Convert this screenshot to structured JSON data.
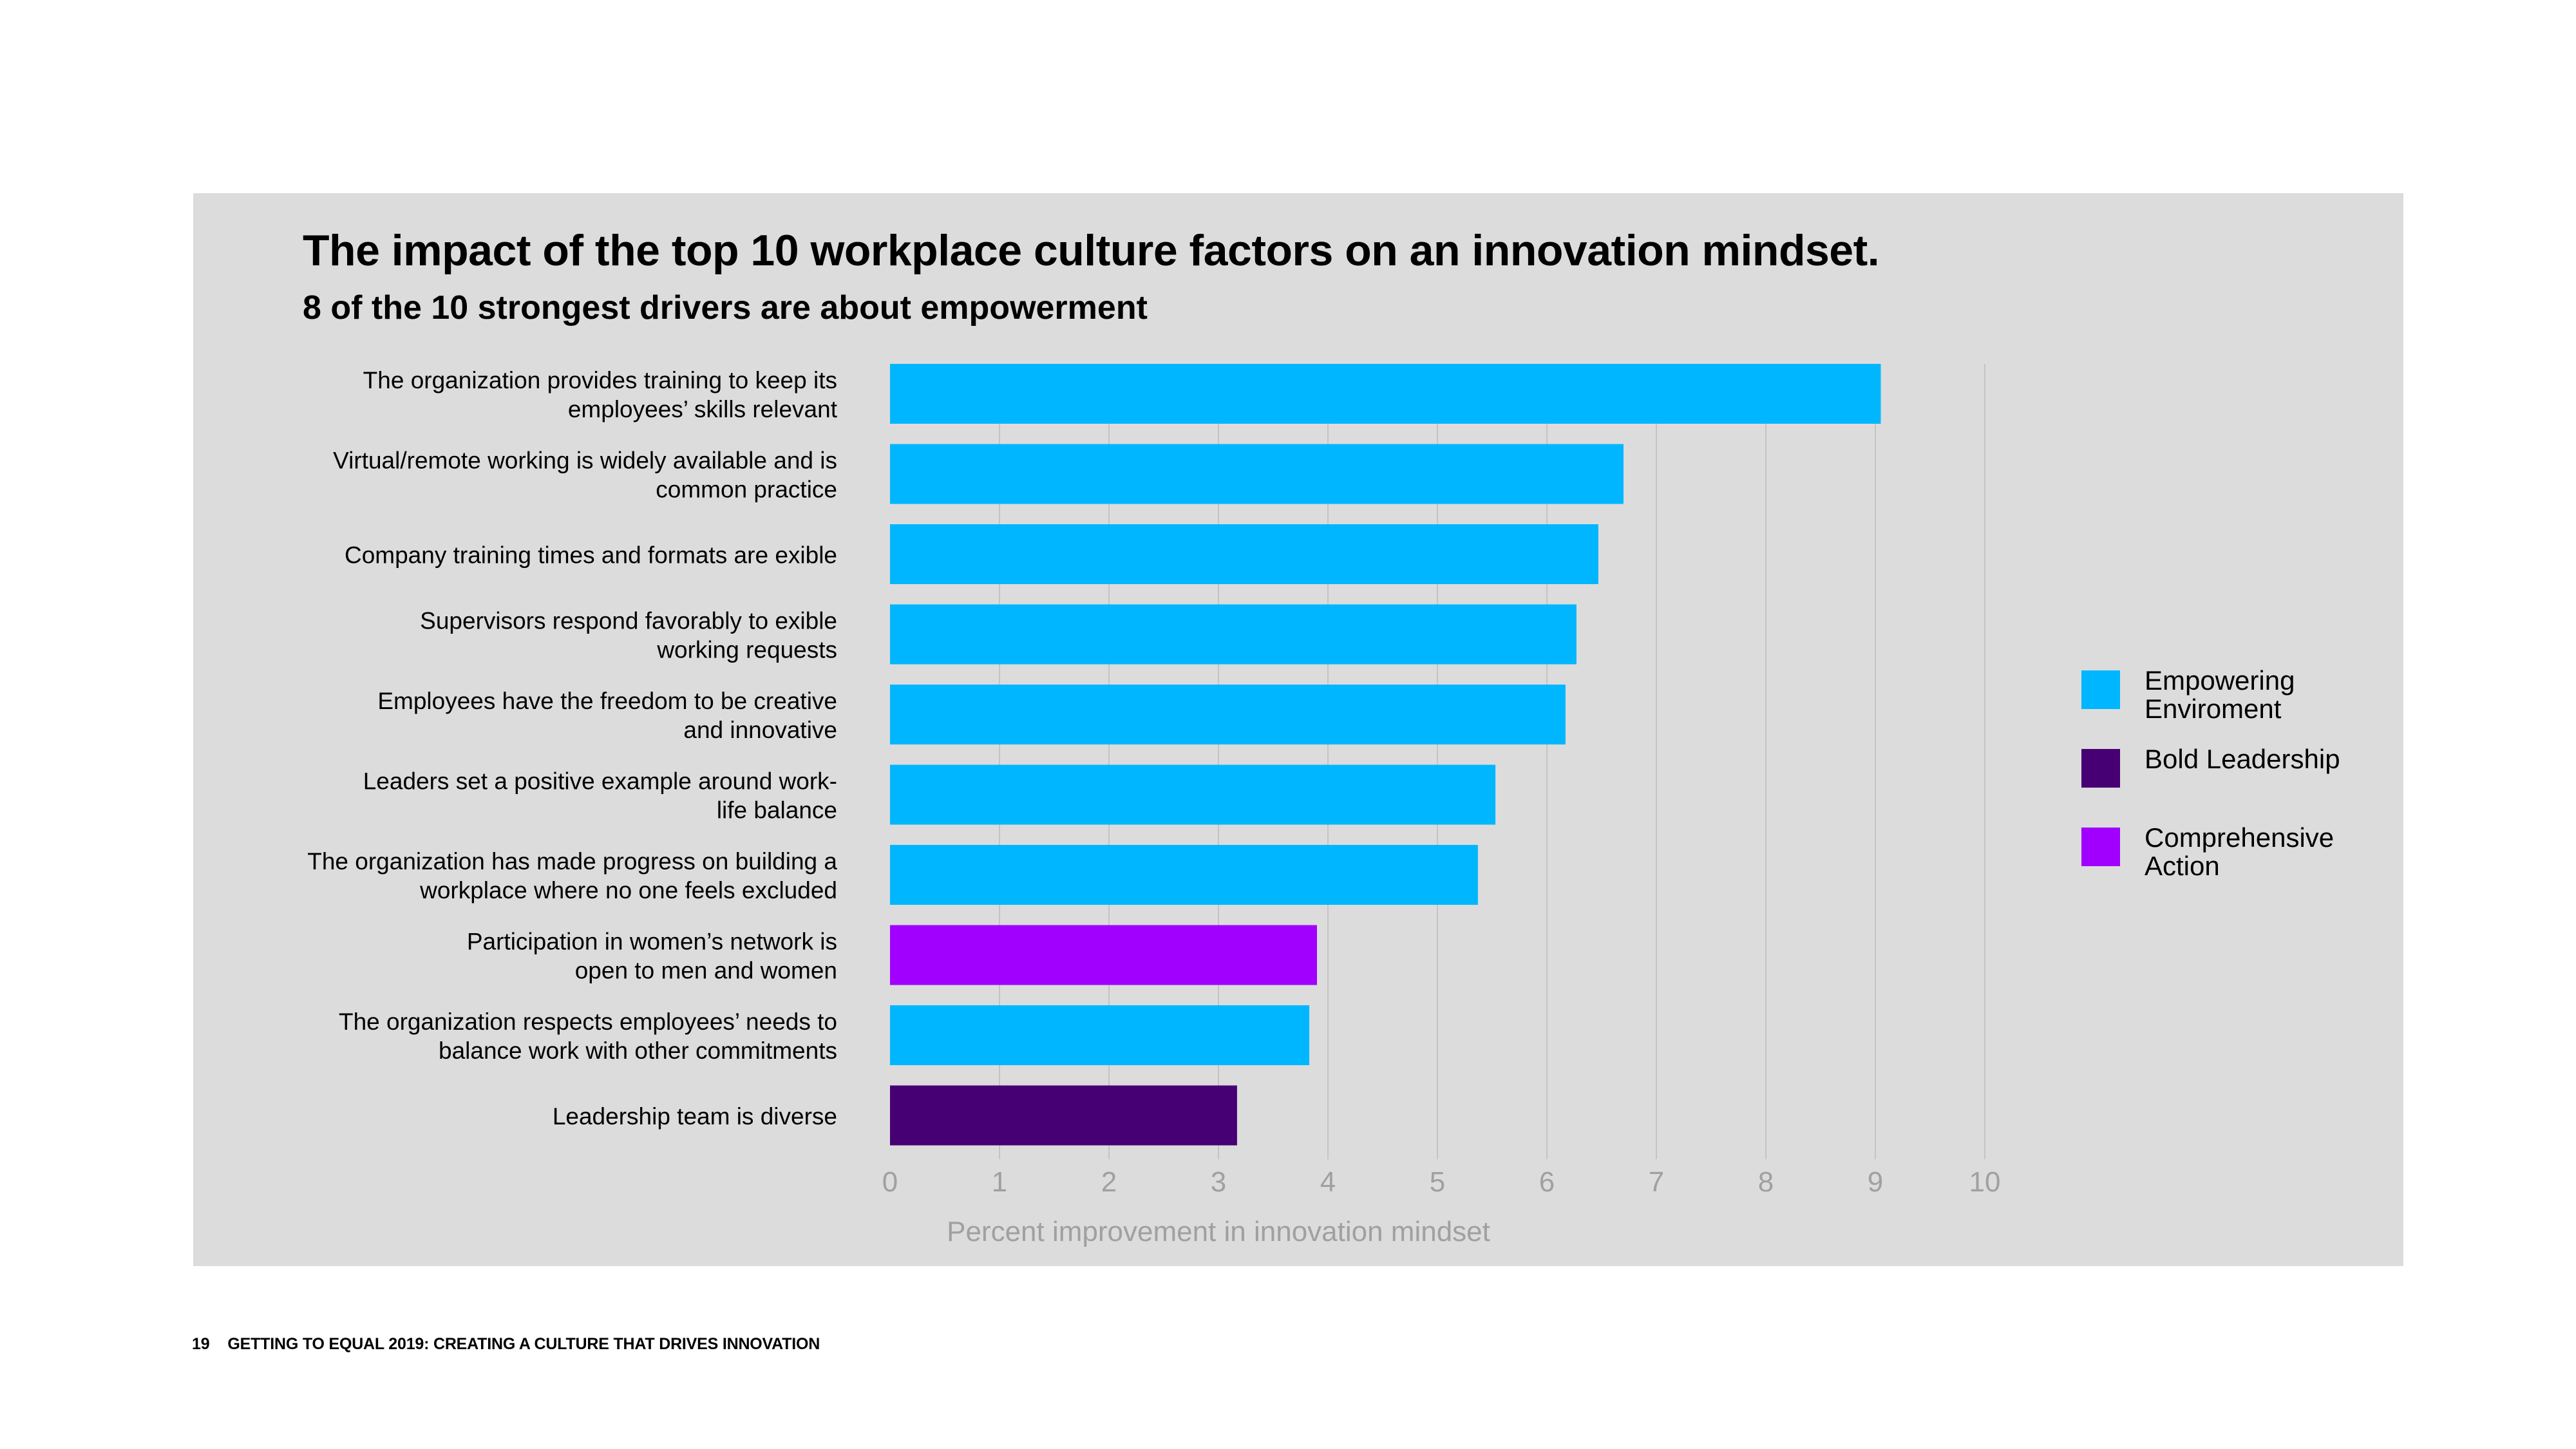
{
  "chart_data": {
    "type": "bar",
    "orientation": "horizontal",
    "title": "The impact of the top 10 workplace culture factors on an innovation mindset.",
    "subtitle": "8 of the 10 strongest drivers are about empowerment",
    "xlabel": "Percent improvement in innovation mindset",
    "xlim": [
      0,
      10
    ],
    "xticks": [
      "0",
      "1",
      "2",
      "3",
      "4",
      "5",
      "6",
      "7",
      "8",
      "9",
      "10"
    ],
    "grid": true,
    "legend_position": "right",
    "colors": {
      "empowering": "#00b7ff",
      "bold": "#460073",
      "comprehensive": "#a100ff"
    },
    "legend": [
      {
        "key": "empowering",
        "label": "Empowering Enviroment"
      },
      {
        "key": "bold",
        "label": "Bold Leadership"
      },
      {
        "key": "comprehensive",
        "label": "Comprehensive Action"
      }
    ],
    "bars": [
      {
        "label_lines": [
          "The organization provides training to keep its",
          "employees’ skills relevant"
        ],
        "value": 9.05,
        "category": "empowering"
      },
      {
        "label_lines": [
          "Virtual/remote working is widely available and is",
          "common practice"
        ],
        "value": 6.7,
        "category": "empowering"
      },
      {
        "label_lines": [
          "Company training times and formats are   exible"
        ],
        "value": 6.47,
        "category": "empowering"
      },
      {
        "label_lines": [
          "Supervisors respond favorably to   exible",
          "working requests"
        ],
        "value": 6.27,
        "category": "empowering"
      },
      {
        "label_lines": [
          "Employees have the freedom to be creative",
          "and innovative"
        ],
        "value": 6.17,
        "category": "empowering"
      },
      {
        "label_lines": [
          "Leaders set a positive example around work-",
          "life balance"
        ],
        "value": 5.53,
        "category": "empowering"
      },
      {
        "label_lines": [
          "The organization has made progress on building a",
          "workplace where no one feels excluded"
        ],
        "value": 5.37,
        "category": "empowering"
      },
      {
        "label_lines": [
          "Participation in women’s network is",
          "open to men and women"
        ],
        "value": 3.9,
        "category": "comprehensive"
      },
      {
        "label_lines": [
          "The organization respects employees’ needs to",
          "balance work with other commitments"
        ],
        "value": 3.83,
        "category": "empowering"
      },
      {
        "label_lines": [
          "Leadership team is diverse"
        ],
        "value": 3.17,
        "category": "bold"
      }
    ]
  },
  "footer": {
    "page_number": "19",
    "text": "GETTING TO EQUAL 2019: CREATING A CULTURE THAT DRIVES INNOVATION"
  }
}
